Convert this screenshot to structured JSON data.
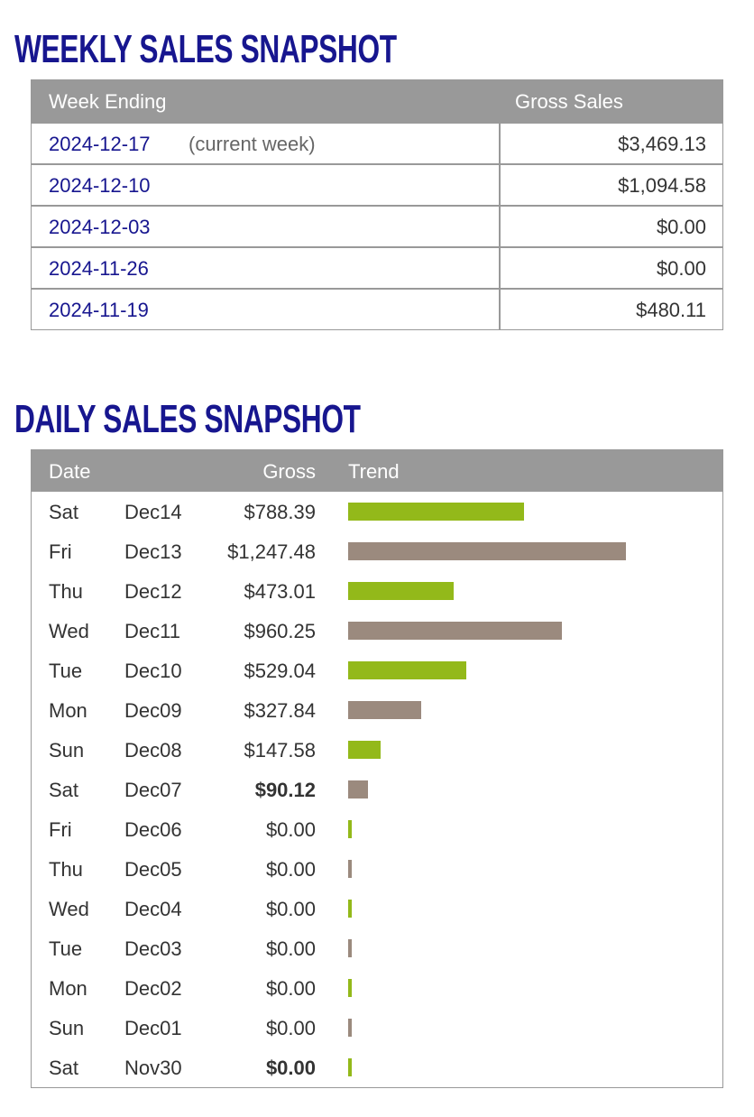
{
  "weekly": {
    "title": "WEEKLY SALES SNAPSHOT",
    "headers": [
      "Week Ending",
      "Gross Sales"
    ],
    "rows": [
      {
        "date": "2024-12-17",
        "note": "(current week)",
        "gross": "$3,469.13"
      },
      {
        "date": "2024-12-10",
        "gross": "$1,094.58"
      },
      {
        "date": "2024-12-03",
        "gross": "$0.00"
      },
      {
        "date": "2024-11-26",
        "gross": "$0.00"
      },
      {
        "date": "2024-11-19",
        "gross": "$480.11"
      }
    ]
  },
  "daily": {
    "title": "DAILY SALES SNAPSHOT",
    "headers": [
      "Date",
      "Gross",
      "Trend"
    ],
    "colors": [
      "#93b91a",
      "#9b8a7e"
    ],
    "rows": [
      {
        "day": "Sat",
        "date": "Dec14",
        "value": 788.39,
        "value_label": "$788.39"
      },
      {
        "day": "Fri",
        "date": "Dec13",
        "value": 1247.48,
        "value_label": "$1,247.48"
      },
      {
        "day": "Thu",
        "date": "Dec12",
        "value": 473.01,
        "value_label": "$473.01"
      },
      {
        "day": "Wed",
        "date": "Dec11",
        "value": 960.25,
        "value_label": "$960.25"
      },
      {
        "day": "Tue",
        "date": "Dec10",
        "value": 529.04,
        "value_label": "$529.04"
      },
      {
        "day": "Mon",
        "date": "Dec09",
        "value": 327.84,
        "value_label": "$327.84"
      },
      {
        "day": "Sun",
        "date": "Dec08",
        "value": 147.58,
        "value_label": "$147.58"
      },
      {
        "day": "Sat",
        "date": "Dec07",
        "value": 90.12,
        "value_label": "$90.12"
      },
      {
        "day": "Fri",
        "date": "Dec06",
        "value": 0,
        "value_label": "$0.00"
      },
      {
        "day": "Thu",
        "date": "Dec05",
        "value": 0,
        "value_label": "$0.00"
      },
      {
        "day": "Wed",
        "date": "Dec04",
        "value": 0,
        "value_label": "$0.00"
      },
      {
        "day": "Tue",
        "date": "Dec03",
        "value": 0,
        "value_label": "$0.00"
      },
      {
        "day": "Mon",
        "date": "Dec02",
        "value": 0,
        "value_label": "$0.00"
      },
      {
        "day": "Sun",
        "date": "Dec01",
        "value": 0,
        "value_label": "$0.00"
      },
      {
        "day": "Sat",
        "date": "Nov30",
        "value": 0,
        "value_label": "$0.00"
      }
    ]
  }
}
